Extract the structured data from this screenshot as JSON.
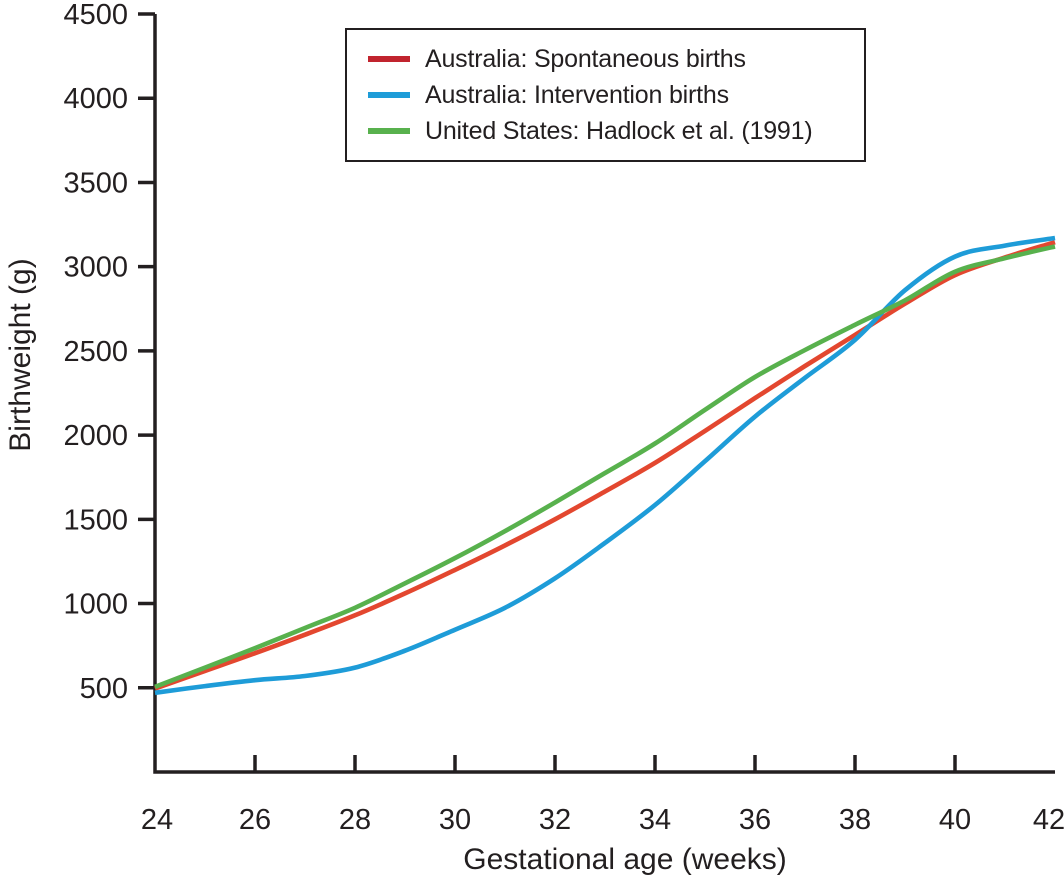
{
  "figure": {
    "background": "#ffffff",
    "axis_color": "#231f20",
    "text_color": "#231f20"
  },
  "chart_data": {
    "type": "line",
    "title": "",
    "xlabel": "Gestational age (weeks)",
    "ylabel": "Birthweight (g)",
    "xlim": [
      24,
      42
    ],
    "ylim": [
      0,
      4500
    ],
    "xticks": [
      24,
      26,
      28,
      30,
      32,
      34,
      36,
      38,
      40,
      42
    ],
    "yticks": [
      500,
      1000,
      1500,
      2000,
      2500,
      3000,
      3500,
      4000,
      4500
    ],
    "grid": false,
    "legend_position": "top-center-inside",
    "x": [
      24,
      25,
      26,
      27,
      28,
      29,
      30,
      31,
      32,
      33,
      34,
      35,
      36,
      37,
      38,
      39,
      40,
      41,
      42
    ],
    "series": [
      {
        "name": "Australia: Spontaneous births",
        "color": "#e3472f",
        "legend_color": "#c1242e",
        "values": [
          495,
          600,
          705,
          815,
          930,
          1060,
          1200,
          1345,
          1500,
          1665,
          1835,
          2025,
          2220,
          2410,
          2595,
          2780,
          2950,
          3055,
          3145
        ]
      },
      {
        "name": "Australia: Intervention births",
        "color": "#1e9cd8",
        "legend_color": "#1e9cd8",
        "values": [
          470,
          510,
          545,
          570,
          620,
          720,
          845,
          975,
          1150,
          1360,
          1585,
          1845,
          2110,
          2340,
          2565,
          2860,
          3060,
          3125,
          3170
        ]
      },
      {
        "name": "United States: Hadlock et al. (1991)",
        "color": "#58b14d",
        "legend_color": "#58b14d",
        "values": [
          505,
          620,
          735,
          855,
          975,
          1120,
          1270,
          1430,
          1600,
          1775,
          1950,
          2150,
          2345,
          2505,
          2655,
          2800,
          2970,
          3050,
          3120
        ]
      }
    ]
  }
}
